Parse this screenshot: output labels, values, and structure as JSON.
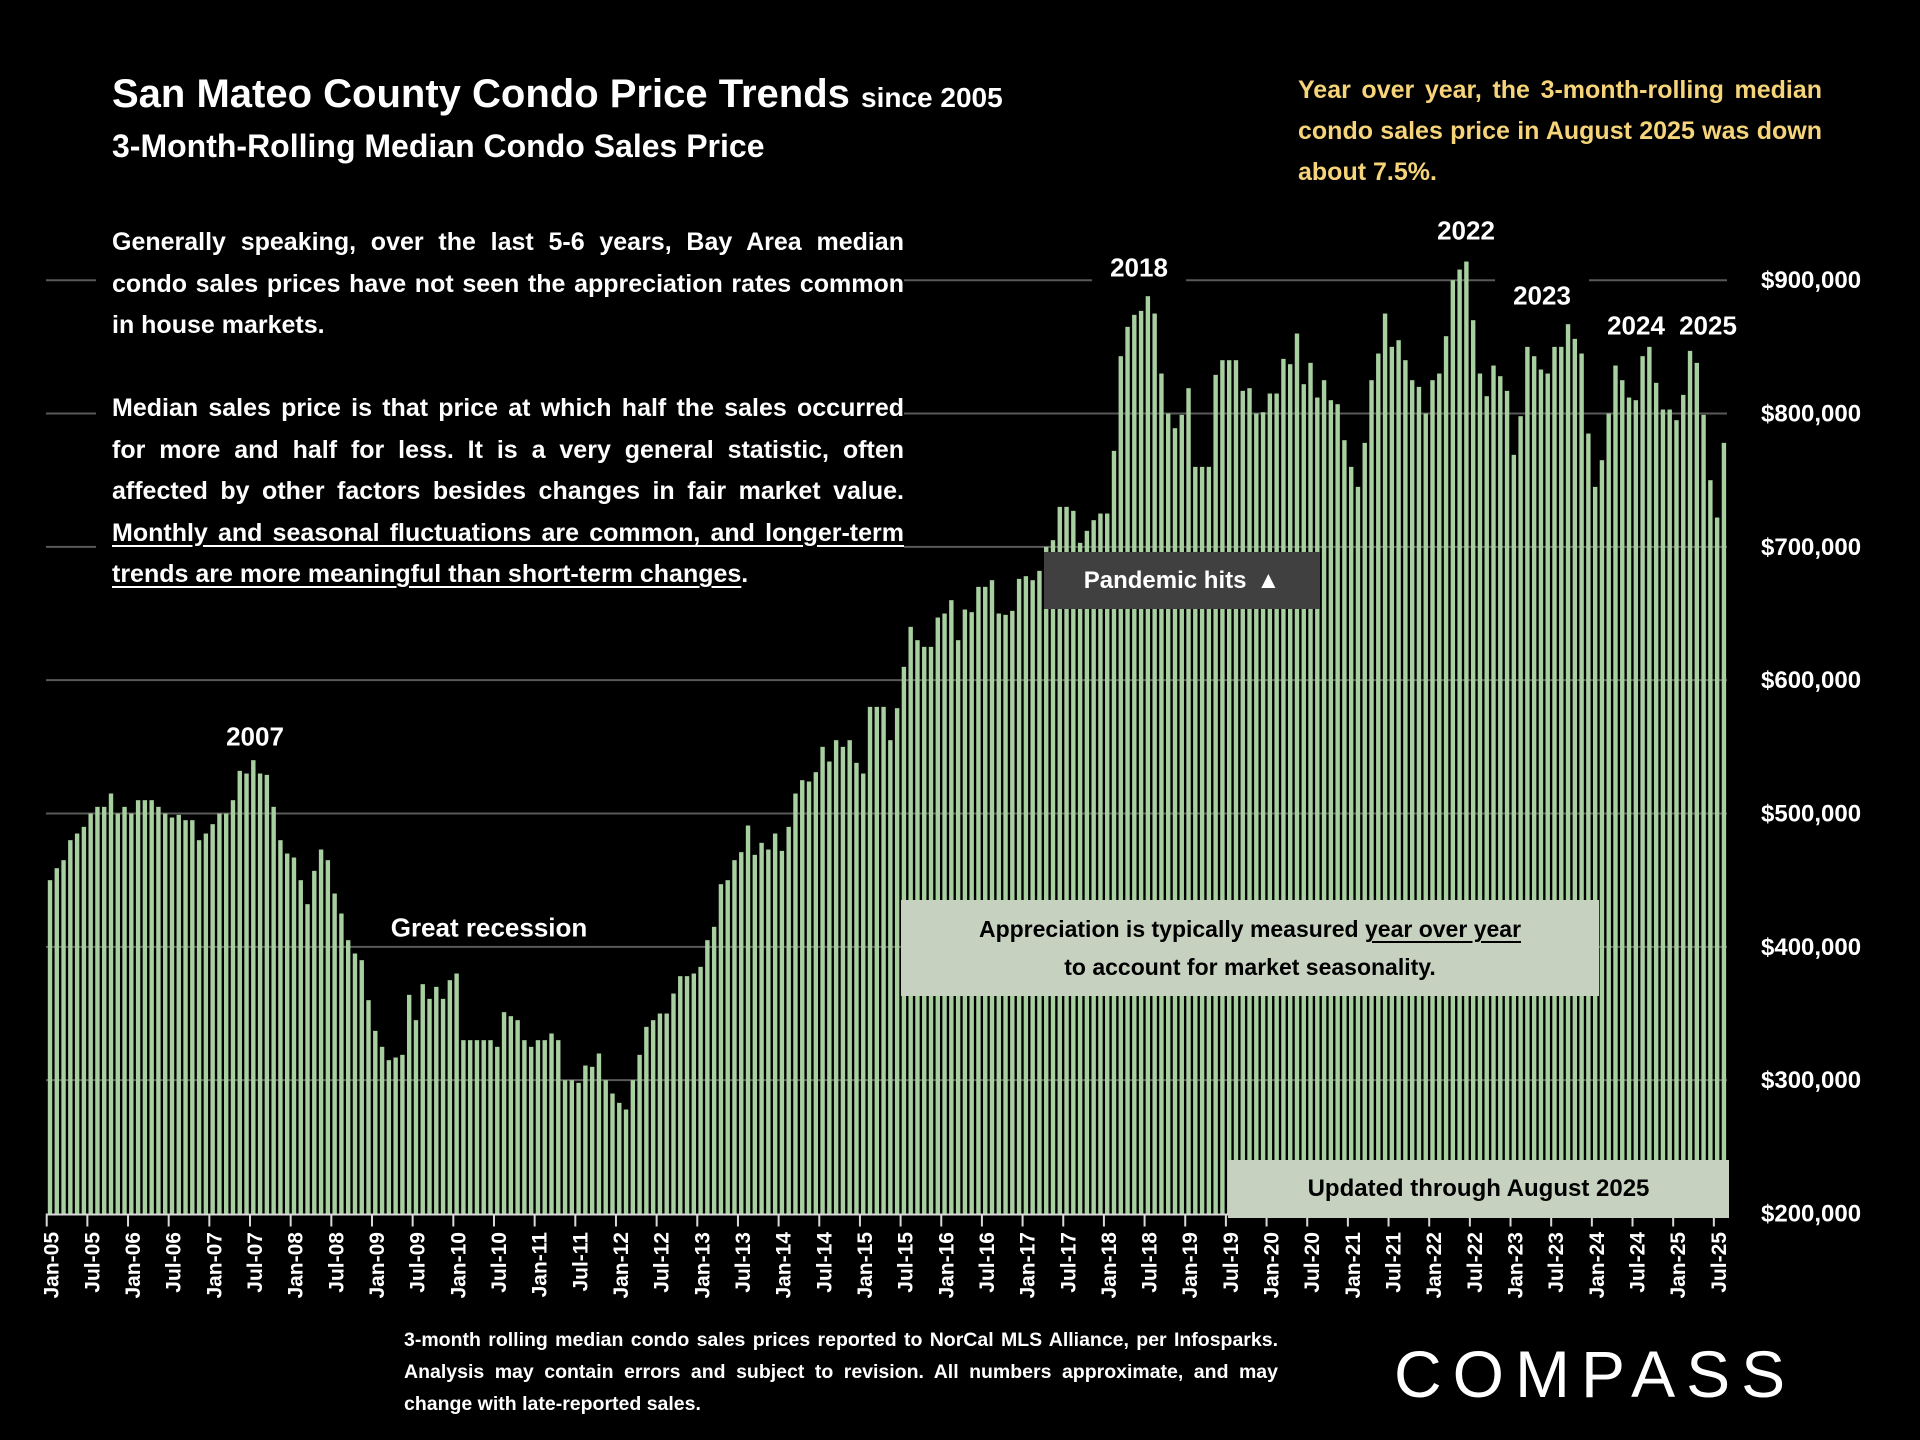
{
  "header": {
    "title": "San Mateo County Condo Price Trends",
    "title_suffix": "since 2005",
    "subtitle": "3-Month-Rolling Median Condo Sales Price"
  },
  "yoy_note": "Year over year, the 3-month-rolling median condo sales price in August 2025 was down about 7.5%.",
  "body": {
    "para1": "Generally speaking, over the last 5-6 years, Bay Area median condo sales prices have not seen the appreciation rates common in house markets.",
    "para2_plain": "Median sales price is that price at which half the sales occurred for more and half for less. It is a very general statistic, often affected by other factors besides changes in fair market value. ",
    "para2_underlined": "Monthly and seasonal fluctuations are common, and longer-term trends are more meaningful than short-term changes",
    "para2_end": "."
  },
  "annotations": {
    "y2007": "2007",
    "great_recession": "Great recession",
    "y2018": "2018",
    "y2022": "2022",
    "y2023": "2023",
    "y2024": "2024",
    "y2025": "2025",
    "pandemic": "Pandemic hits",
    "pandemic_icon": "triangle-up",
    "appreciation_pre": "Appreciation is typically measured ",
    "appreciation_underlined": "year over year",
    "appreciation_line2": "to account for market seasonality.",
    "updated": "Updated through August 2025"
  },
  "footnote": "3-month rolling median condo sales prices reported to NorCal MLS Alliance, per Infosparks. Analysis may contain errors and subject to revision. All numbers approximate, and may change with late-reported sales.",
  "logo": "COMPASS",
  "colors": {
    "bar": "#a8cf9f",
    "highlight_text": "#f6d47a",
    "background": "#000000",
    "grid": "#595959",
    "callout_box": "#c7d1c0",
    "pandemic_box": "#404040"
  },
  "chart_data": {
    "type": "bar",
    "x_start": "Jan-05",
    "x_end": "Aug-25",
    "x_tick_labels": [
      "Jan-05",
      "Jul-05",
      "Jan-06",
      "Jul-06",
      "Jan-07",
      "Jul-07",
      "Jan-08",
      "Jul-08",
      "Jan-09",
      "Jul-09",
      "Jan-10",
      "Jul-10",
      "Jan-11",
      "Jul-11",
      "Jan-12",
      "Jul-12",
      "Jan-13",
      "Jul-13",
      "Jan-14",
      "Jul-14",
      "Jan-15",
      "Jul-15",
      "Jan-16",
      "Jul-16",
      "Jan-17",
      "Jul-17",
      "Jan-18",
      "Jul-18",
      "Jan-19",
      "Jul-19",
      "Jan-20",
      "Jul-20",
      "Jan-21",
      "Jul-21",
      "Jan-22",
      "Jul-22",
      "Jan-23",
      "Jul-23",
      "Jan-24",
      "Jul-24",
      "Jan-25",
      "Jul-25"
    ],
    "y_tick_labels": [
      "$200,000",
      "$300,000",
      "$400,000",
      "$500,000",
      "$600,000",
      "$700,000",
      "$800,000",
      "$900,000"
    ],
    "y_ticks": [
      200000,
      300000,
      400000,
      500000,
      600000,
      700000,
      800000,
      900000
    ],
    "ylim": [
      200000,
      900000
    ],
    "grid": true,
    "units": "USD",
    "values_note_units": "thousands USD",
    "values": [
      450,
      459,
      465,
      480,
      485,
      490,
      500,
      505,
      505,
      515,
      500,
      505,
      500,
      510,
      510,
      510,
      505,
      500,
      497,
      499,
      495,
      495,
      480,
      485,
      492,
      500,
      500,
      510,
      532,
      530,
      540,
      530,
      529,
      505,
      480,
      470,
      467,
      450,
      432,
      457,
      473,
      465,
      440,
      425,
      405,
      395,
      390,
      360,
      337,
      325,
      315,
      317,
      319,
      364,
      345,
      372,
      361,
      370,
      361,
      375,
      380,
      330,
      330,
      330,
      330,
      330,
      325,
      351,
      348,
      345,
      330,
      325,
      330,
      330,
      335,
      330,
      300,
      300,
      298,
      311,
      310,
      320,
      300,
      290,
      283,
      278,
      300,
      319,
      340,
      345,
      350,
      350,
      365,
      378,
      378,
      380,
      385,
      405,
      415,
      447,
      450,
      465,
      471,
      491,
      469,
      478,
      473,
      485,
      472,
      490,
      515,
      525,
      524,
      531,
      550,
      539,
      555,
      550,
      555,
      538,
      530,
      580,
      580,
      580,
      555,
      579,
      610,
      640,
      630,
      625,
      625,
      647,
      650,
      660,
      630,
      653,
      651,
      670,
      670,
      675,
      650,
      649,
      652,
      676,
      678,
      675,
      682,
      700,
      705,
      730,
      730,
      727,
      703,
      712,
      720,
      725,
      725,
      772,
      843,
      865,
      874,
      877,
      888,
      875,
      830,
      800,
      789,
      799,
      819,
      760,
      760,
      760,
      829,
      840,
      840,
      840,
      817,
      819,
      800,
      801,
      815,
      815,
      841,
      837,
      860,
      822,
      838,
      812,
      825,
      810,
      807,
      780,
      760,
      745,
      778,
      825,
      845,
      875,
      850,
      855,
      840,
      825,
      820,
      800,
      825,
      830,
      858,
      900,
      908,
      914,
      870,
      830,
      813,
      836,
      828,
      817,
      769,
      798,
      850,
      843,
      833,
      830,
      850,
      850,
      867,
      856,
      845,
      785,
      745,
      765,
      800,
      836,
      825,
      812,
      810,
      843,
      850,
      823,
      803,
      803,
      795,
      814,
      847,
      838,
      799,
      750,
      722,
      778
    ]
  }
}
